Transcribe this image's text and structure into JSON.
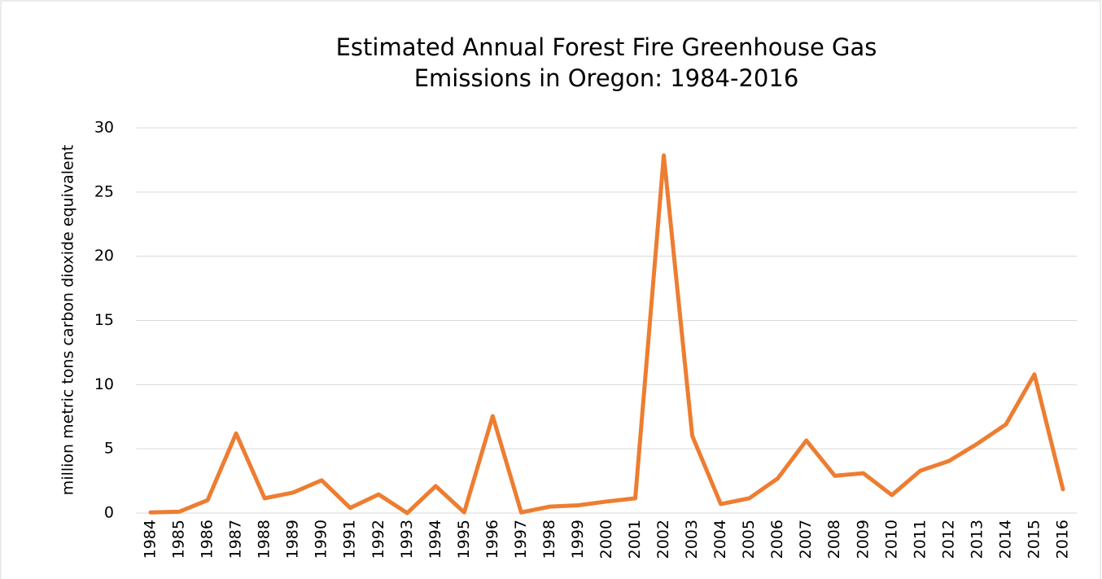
{
  "chart_data": {
    "type": "line",
    "title": [
      "Estimated Annual Forest Fire Greenhouse Gas",
      "Emissions in Oregon: 1984-2016"
    ],
    "y_label": "million metric tons carbon dioxide equivalent",
    "categories": [
      "1984",
      "1985",
      "1986",
      "1987",
      "1988",
      "1989",
      "1990",
      "1991",
      "1992",
      "1993",
      "1994",
      "1995",
      "1996",
      "1997",
      "1998",
      "1999",
      "2000",
      "2001",
      "2002",
      "2003",
      "2004",
      "2005",
      "2006",
      "2007",
      "2008",
      "2009",
      "2010",
      "2011",
      "2012",
      "2013",
      "2014",
      "2015",
      "2016"
    ],
    "series": [
      {
        "color": "#ed7d31",
        "values": [
          0.05,
          0.1,
          1.0,
          6.2,
          1.15,
          1.6,
          2.55,
          0.4,
          1.45,
          0.0,
          2.1,
          0.05,
          7.55,
          0.05,
          0.5,
          0.6,
          0.9,
          1.15,
          27.85,
          6.0,
          0.7,
          1.15,
          2.7,
          5.65,
          2.9,
          3.1,
          1.4,
          3.3,
          4.05,
          5.4,
          6.9,
          10.8,
          1.85
        ]
      }
    ],
    "ylim": [
      0,
      30
    ],
    "yticks": [
      0,
      5,
      10,
      15,
      20,
      25,
      30
    ],
    "grid": true
  }
}
